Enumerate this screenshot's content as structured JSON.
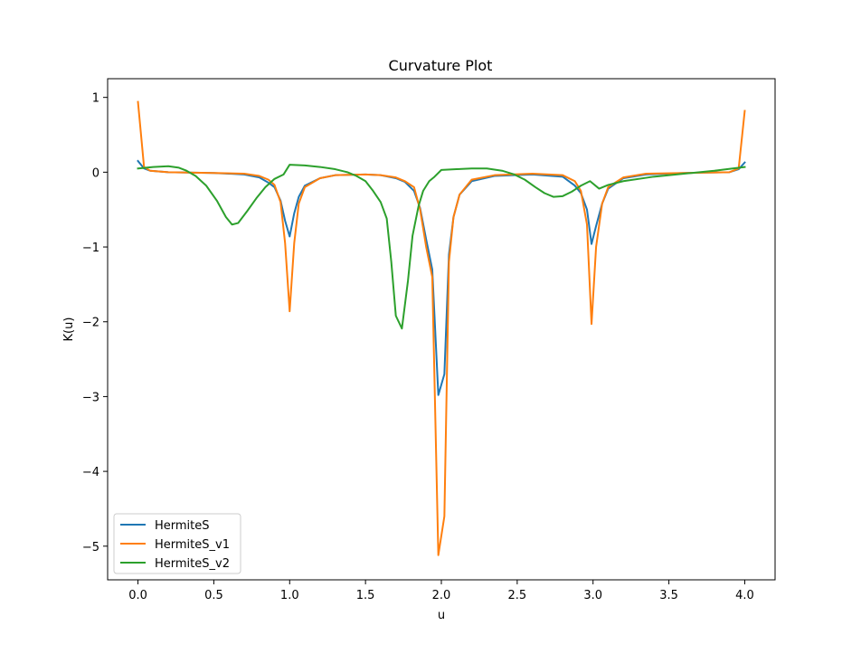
{
  "chart_data": {
    "type": "line",
    "title": "Curvature Plot",
    "xlabel": "u",
    "ylabel": "K(u)",
    "xlim": [
      -0.2,
      4.2
    ],
    "ylim": [
      -5.45,
      1.25
    ],
    "xticks": [
      0.0,
      0.5,
      1.0,
      1.5,
      2.0,
      2.5,
      3.0,
      3.5,
      4.0
    ],
    "xtick_labels": [
      "0.0",
      "0.5",
      "1.0",
      "1.5",
      "2.0",
      "2.5",
      "3.0",
      "3.5",
      "4.0"
    ],
    "yticks": [
      1,
      0,
      -1,
      -2,
      -3,
      -4,
      -5
    ],
    "ytick_labels": [
      "1",
      "0",
      "−1",
      "−2",
      "−3",
      "−4",
      "−5"
    ],
    "grid": false,
    "legend_position": "lower-left",
    "series": [
      {
        "name": "HermiteS",
        "color": "#1f77b4",
        "points": [
          [
            0.0,
            0.15
          ],
          [
            0.04,
            0.05
          ],
          [
            0.08,
            0.02
          ],
          [
            0.2,
            0.0
          ],
          [
            0.5,
            -0.01
          ],
          [
            0.7,
            -0.03
          ],
          [
            0.8,
            -0.07
          ],
          [
            0.86,
            -0.14
          ],
          [
            0.9,
            -0.2
          ],
          [
            0.94,
            -0.38
          ],
          [
            0.97,
            -0.65
          ],
          [
            1.0,
            -0.86
          ],
          [
            1.03,
            -0.55
          ],
          [
            1.06,
            -0.33
          ],
          [
            1.1,
            -0.18
          ],
          [
            1.2,
            -0.08
          ],
          [
            1.3,
            -0.04
          ],
          [
            1.5,
            -0.03
          ],
          [
            1.6,
            -0.04
          ],
          [
            1.7,
            -0.08
          ],
          [
            1.76,
            -0.13
          ],
          [
            1.82,
            -0.25
          ],
          [
            1.86,
            -0.48
          ],
          [
            1.9,
            -0.9
          ],
          [
            1.94,
            -1.3
          ],
          [
            1.98,
            -2.98
          ],
          [
            2.02,
            -2.7
          ],
          [
            2.05,
            -1.1
          ],
          [
            2.08,
            -0.6
          ],
          [
            2.12,
            -0.3
          ],
          [
            2.2,
            -0.12
          ],
          [
            2.35,
            -0.05
          ],
          [
            2.6,
            -0.03
          ],
          [
            2.8,
            -0.06
          ],
          [
            2.88,
            -0.18
          ],
          [
            2.92,
            -0.28
          ],
          [
            2.96,
            -0.5
          ],
          [
            2.99,
            -0.96
          ],
          [
            3.02,
            -0.72
          ],
          [
            3.06,
            -0.42
          ],
          [
            3.1,
            -0.22
          ],
          [
            3.2,
            -0.08
          ],
          [
            3.35,
            -0.03
          ],
          [
            3.6,
            -0.01
          ],
          [
            3.9,
            0.0
          ],
          [
            3.96,
            0.04
          ],
          [
            4.0,
            0.13
          ]
        ]
      },
      {
        "name": "HermiteS_v1",
        "color": "#ff7f0e",
        "points": [
          [
            0.0,
            0.94
          ],
          [
            0.04,
            0.07
          ],
          [
            0.08,
            0.02
          ],
          [
            0.2,
            0.0
          ],
          [
            0.5,
            -0.01
          ],
          [
            0.7,
            -0.02
          ],
          [
            0.8,
            -0.05
          ],
          [
            0.86,
            -0.1
          ],
          [
            0.9,
            -0.17
          ],
          [
            0.94,
            -0.4
          ],
          [
            0.97,
            -0.95
          ],
          [
            1.0,
            -1.86
          ],
          [
            1.03,
            -0.95
          ],
          [
            1.06,
            -0.42
          ],
          [
            1.1,
            -0.2
          ],
          [
            1.2,
            -0.08
          ],
          [
            1.3,
            -0.04
          ],
          [
            1.5,
            -0.03
          ],
          [
            1.6,
            -0.04
          ],
          [
            1.7,
            -0.07
          ],
          [
            1.76,
            -0.12
          ],
          [
            1.82,
            -0.2
          ],
          [
            1.86,
            -0.5
          ],
          [
            1.9,
            -1.0
          ],
          [
            1.94,
            -1.4
          ],
          [
            1.98,
            -5.12
          ],
          [
            2.02,
            -4.6
          ],
          [
            2.05,
            -1.2
          ],
          [
            2.08,
            -0.6
          ],
          [
            2.12,
            -0.3
          ],
          [
            2.2,
            -0.1
          ],
          [
            2.35,
            -0.04
          ],
          [
            2.6,
            -0.02
          ],
          [
            2.8,
            -0.04
          ],
          [
            2.88,
            -0.12
          ],
          [
            2.92,
            -0.25
          ],
          [
            2.96,
            -0.7
          ],
          [
            2.99,
            -2.03
          ],
          [
            3.02,
            -1.0
          ],
          [
            3.06,
            -0.42
          ],
          [
            3.1,
            -0.2
          ],
          [
            3.2,
            -0.07
          ],
          [
            3.35,
            -0.02
          ],
          [
            3.6,
            -0.01
          ],
          [
            3.9,
            0.0
          ],
          [
            3.96,
            0.05
          ],
          [
            4.0,
            0.82
          ]
        ]
      },
      {
        "name": "HermiteS_v2",
        "color": "#2ca02c",
        "points": [
          [
            0.0,
            0.05
          ],
          [
            0.1,
            0.07
          ],
          [
            0.2,
            0.08
          ],
          [
            0.27,
            0.06
          ],
          [
            0.32,
            0.02
          ],
          [
            0.38,
            -0.05
          ],
          [
            0.45,
            -0.18
          ],
          [
            0.52,
            -0.38
          ],
          [
            0.58,
            -0.6
          ],
          [
            0.62,
            -0.7
          ],
          [
            0.66,
            -0.68
          ],
          [
            0.72,
            -0.52
          ],
          [
            0.78,
            -0.35
          ],
          [
            0.84,
            -0.2
          ],
          [
            0.9,
            -0.09
          ],
          [
            0.96,
            -0.03
          ],
          [
            1.0,
            0.1
          ],
          [
            1.1,
            0.09
          ],
          [
            1.2,
            0.07
          ],
          [
            1.3,
            0.04
          ],
          [
            1.38,
            0.0
          ],
          [
            1.44,
            -0.05
          ],
          [
            1.5,
            -0.12
          ],
          [
            1.55,
            -0.25
          ],
          [
            1.6,
            -0.4
          ],
          [
            1.64,
            -0.62
          ],
          [
            1.67,
            -1.2
          ],
          [
            1.7,
            -1.92
          ],
          [
            1.74,
            -2.09
          ],
          [
            1.78,
            -1.45
          ],
          [
            1.81,
            -0.85
          ],
          [
            1.85,
            -0.45
          ],
          [
            1.88,
            -0.25
          ],
          [
            1.92,
            -0.12
          ],
          [
            1.95,
            -0.07
          ],
          [
            2.0,
            0.03
          ],
          [
            2.1,
            0.04
          ],
          [
            2.2,
            0.05
          ],
          [
            2.3,
            0.05
          ],
          [
            2.4,
            0.02
          ],
          [
            2.48,
            -0.03
          ],
          [
            2.55,
            -0.1
          ],
          [
            2.62,
            -0.2
          ],
          [
            2.68,
            -0.28
          ],
          [
            2.74,
            -0.33
          ],
          [
            2.8,
            -0.32
          ],
          [
            2.86,
            -0.26
          ],
          [
            2.92,
            -0.18
          ],
          [
            2.98,
            -0.12
          ],
          [
            3.04,
            -0.22
          ],
          [
            3.1,
            -0.17
          ],
          [
            3.2,
            -0.12
          ],
          [
            3.4,
            -0.06
          ],
          [
            3.6,
            -0.02
          ],
          [
            3.8,
            0.02
          ],
          [
            4.0,
            0.07
          ]
        ]
      }
    ]
  }
}
